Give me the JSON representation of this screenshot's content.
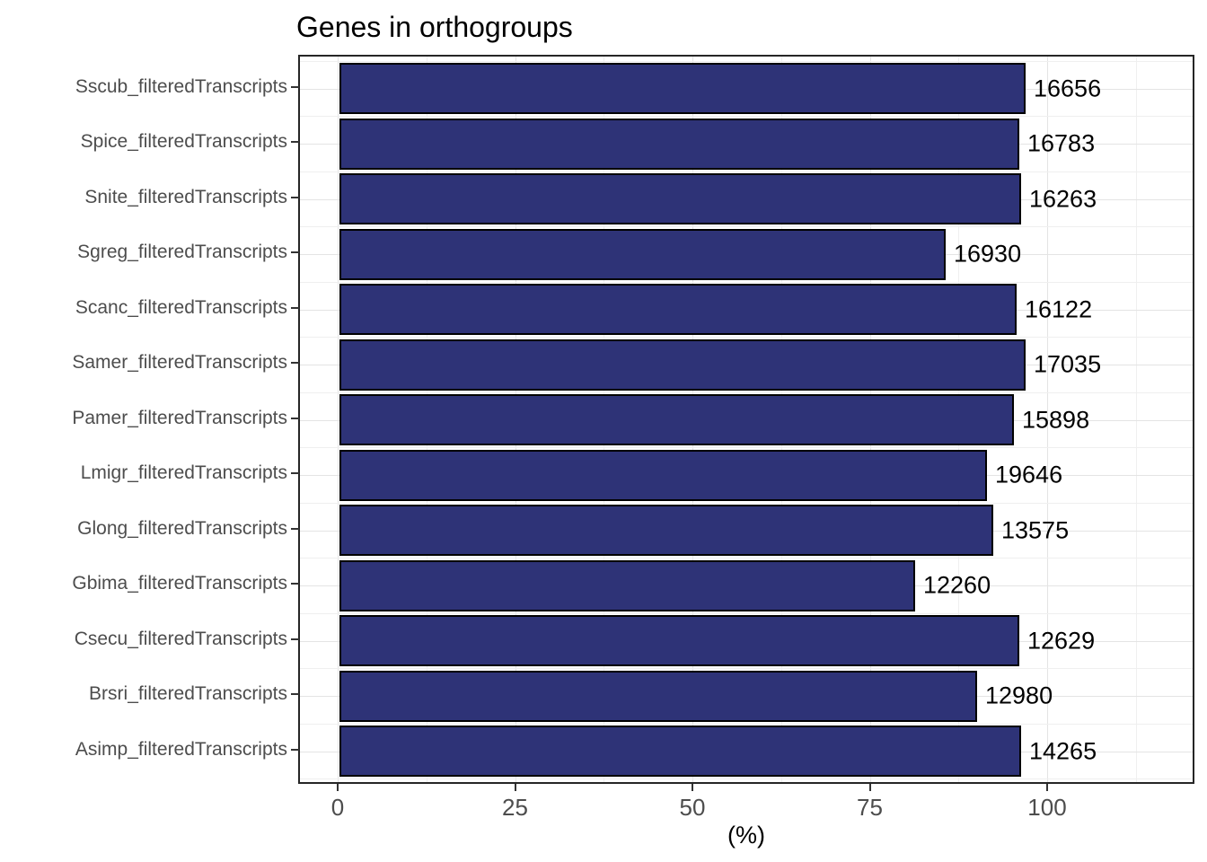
{
  "chart_data": {
    "type": "bar",
    "orientation": "horizontal",
    "title": "Genes in orthogroups",
    "xlabel": "(%)",
    "ylabel": "",
    "legend": false,
    "grid": true,
    "x_axis_range": [
      -5.5,
      120.5
    ],
    "x_ticks": [
      0,
      25,
      50,
      75,
      100
    ],
    "x_tick_labels": [
      "0",
      "25",
      "50",
      "75",
      "100"
    ],
    "x_minor_ticks": [
      12.5,
      37.5,
      62.5,
      87.5,
      112.5
    ],
    "categories": [
      "Sscub_filteredTranscripts",
      "Spice_filteredTranscripts",
      "Snite_filteredTranscripts",
      "Sgreg_filteredTranscripts",
      "Scanc_filteredTranscripts",
      "Samer_filteredTranscripts",
      "Pamer_filteredTranscripts",
      "Lmigr_filteredTranscripts",
      "Glong_filteredTranscripts",
      "Gbima_filteredTranscripts",
      "Csecu_filteredTranscripts",
      "Brsri_filteredTranscripts",
      "Asimp_filteredTranscripts"
    ],
    "series": [
      {
        "name": "percent_of_genes_in_orthogroups",
        "unit": "%",
        "values": [
          96.7,
          95.8,
          96.1,
          85.5,
          95.4,
          96.7,
          95.1,
          91.3,
          92.2,
          81.1,
          95.8,
          89.9,
          96.1
        ]
      },
      {
        "name": "gene_count_labels",
        "values": [
          16656,
          16783,
          16263,
          16930,
          16122,
          17035,
          15898,
          19646,
          13575,
          12260,
          12629,
          12980,
          14265
        ]
      }
    ]
  },
  "colors": {
    "background": "#ffffff",
    "bar_fill": "#2e3377",
    "bar_outline": "#000000",
    "panel_border": "#262626",
    "grid_major": "#e4e4e4",
    "grid_minor": "#efefef",
    "axis_tick": "#333333",
    "axis_text": "#4d4d4d",
    "value_text": "#000000",
    "title_text": "#000000"
  }
}
